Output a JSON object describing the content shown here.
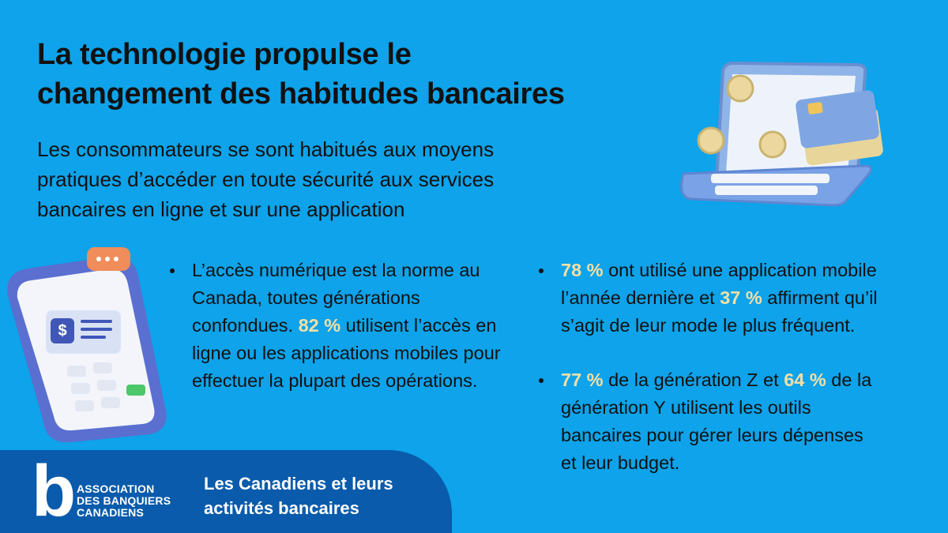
{
  "title": [
    "La technologie propulse le",
    "changement des habitudes bancaires"
  ],
  "subtitle": [
    "Les consommateurs se sont habitués aux moyens",
    "pratiques d’accéder en toute sécurité aux services",
    "bancaires en ligne et sur une application"
  ],
  "columns": [
    [
      [
        {
          "text": "L’accès numérique est la norme au Canada, toutes générations confondues. ",
          "highlight": false
        },
        {
          "text": "82 %",
          "highlight": true
        },
        {
          "text": " utilisent l’accès en ligne ou les applications mobiles pour effectuer la plupart des opérations.",
          "highlight": false
        }
      ]
    ],
    [
      [
        {
          "text": "78 %",
          "highlight": true
        },
        {
          "text": " ont utilisé une application mobile l’année dernière et ",
          "highlight": false
        },
        {
          "text": "37 %",
          "highlight": true
        },
        {
          "text": " affirment qu’il s’agit de leur mode le plus fréquent.",
          "highlight": false
        }
      ],
      [
        {
          "text": "77 %",
          "highlight": true
        },
        {
          "text": " de la génération Z et ",
          "highlight": false
        },
        {
          "text": "64 %",
          "highlight": true
        },
        {
          "text": " de la génération Y utilisent les outils bancaires pour gérer leurs dépenses et leur budget.",
          "highlight": false
        }
      ]
    ]
  ],
  "footer": {
    "logo_mark": "b",
    "logo_text": [
      "ASSOCIATION",
      "DES BANQUIERS",
      "CANADIENS"
    ],
    "caption": [
      "Les Canadiens et leurs",
      "activités bancaires"
    ]
  }
}
